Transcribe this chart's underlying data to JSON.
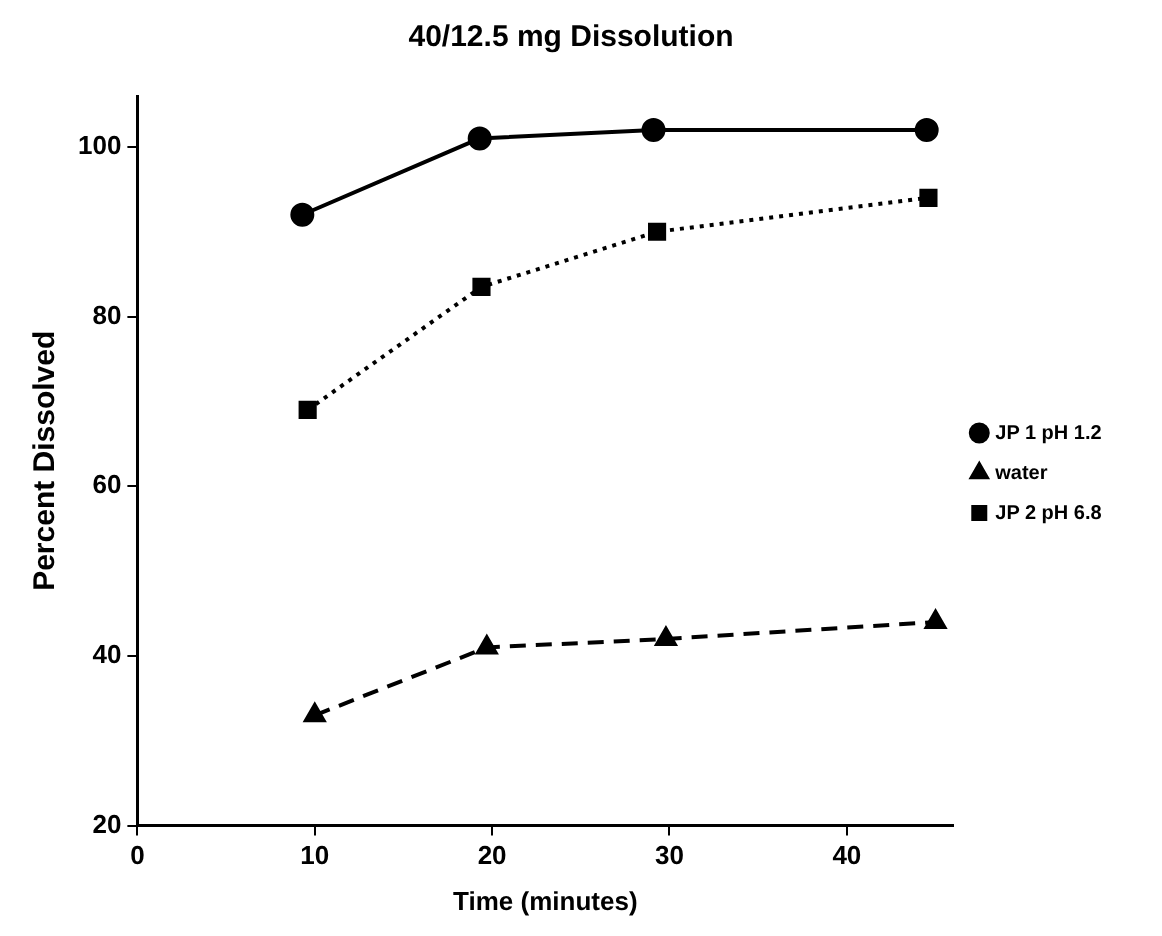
{
  "chart_data": {
    "type": "line",
    "title": "40/12.5 mg Dissolution",
    "xlabel": "Time (minutes)",
    "ylabel": "Percent Dissolved",
    "xlim": [
      0,
      46
    ],
    "xticks": [
      0,
      10,
      20,
      30,
      40
    ],
    "ylim": [
      20,
      106
    ],
    "yticks": [
      20,
      40,
      60,
      80,
      100
    ],
    "grid": false,
    "legend": "right",
    "series": [
      {
        "name": "JP 1 pH 1.2",
        "color": "#000000",
        "marker": "circle",
        "line_style": "solid",
        "x": [
          9.3,
          19.3,
          29.1,
          44.5
        ],
        "values": [
          92,
          101,
          102,
          102
        ]
      },
      {
        "name": "water",
        "color": "#000000",
        "marker": "triangle",
        "line_style": "dashed",
        "x": [
          10,
          19.7,
          29.8,
          45
        ],
        "values": [
          33,
          41,
          42,
          44
        ]
      },
      {
        "name": "JP 2 pH 6.8",
        "color": "#000000",
        "marker": "square",
        "line_style": "dotted",
        "x": [
          9.6,
          19.4,
          29.3,
          44.6
        ],
        "values": [
          69,
          83.5,
          90,
          94
        ]
      }
    ]
  }
}
